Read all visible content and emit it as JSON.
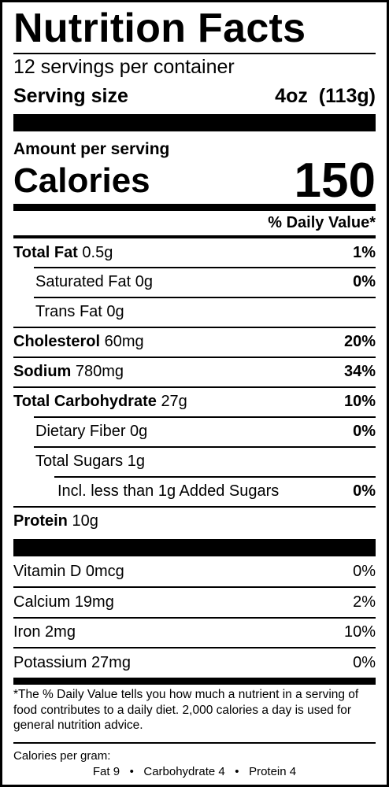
{
  "title": "Nutrition Facts",
  "servings_per_container": "12 servings per container",
  "serving_size": {
    "label": "Serving size",
    "value": "4oz  (113g)"
  },
  "amount_per_serving": "Amount per serving",
  "calories": {
    "label": "Calories",
    "value": "150"
  },
  "daily_value_header": "% Daily Value*",
  "nutrients": [
    {
      "name": "Total Fat",
      "amount": "0.5g",
      "dv": "1%"
    },
    {
      "name": "Saturated Fat",
      "amount": "0g",
      "dv": "0%"
    },
    {
      "name": "Trans Fat",
      "amount": "0g",
      "dv": ""
    },
    {
      "name": "Cholesterol",
      "amount": "60mg",
      "dv": "20%"
    },
    {
      "name": "Sodium",
      "amount": "780mg",
      "dv": "34%"
    },
    {
      "name": "Total Carbohydrate",
      "amount": "27g",
      "dv": "10%"
    },
    {
      "name": "Dietary Fiber",
      "amount": "0g",
      "dv": "0%"
    },
    {
      "name": "Total Sugars",
      "amount": "1g",
      "dv": ""
    },
    {
      "name": "Incl. less than 1g Added Sugars",
      "amount": "",
      "dv": "0%"
    },
    {
      "name": "Protein",
      "amount": "10g",
      "dv": ""
    }
  ],
  "vitamins": [
    {
      "name": "Vitamin D",
      "amount": "0mcg",
      "dv": "0%"
    },
    {
      "name": "Calcium",
      "amount": "19mg",
      "dv": "2%"
    },
    {
      "name": "Iron",
      "amount": "2mg",
      "dv": "10%"
    },
    {
      "name": "Potassium",
      "amount": "27mg",
      "dv": "0%"
    }
  ],
  "footnote": "*The % Daily Value tells you how much a nutrient in a serving of food contributes to a daily diet. 2,000 calories a day is used for general nutrition advice.",
  "calories_per_gram": {
    "label": "Calories per gram:",
    "fat": "Fat 9",
    "carbohydrate": "Carbohydrate 4",
    "protein": "Protein 4",
    "separator": "•"
  }
}
